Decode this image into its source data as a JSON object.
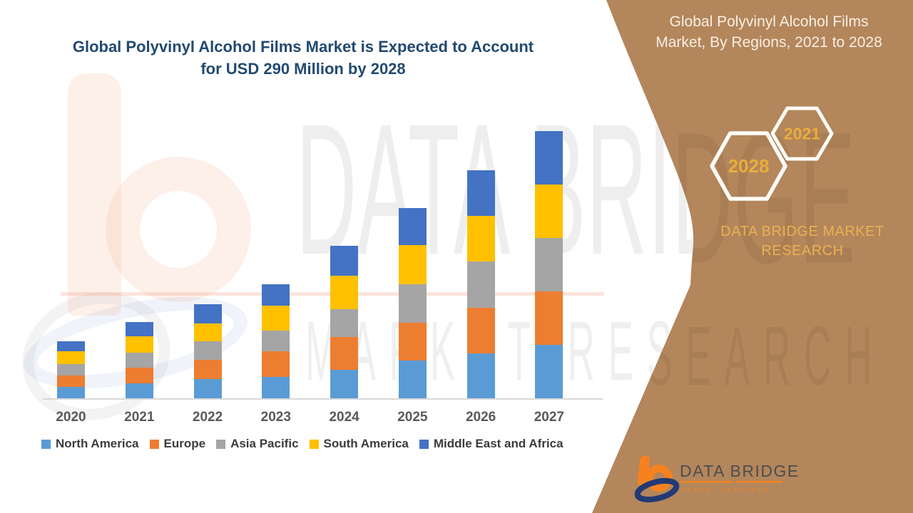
{
  "title": {
    "line1": "Global Polyvinyl Alcohol Films Market is Expected to Account",
    "line2": "for USD 290 Million by 2028",
    "color": "#224A70"
  },
  "panel": {
    "bg_color": "#B3865C",
    "heading_line1": "Global Polyvinyl Alcohol Films",
    "heading_line2": "Market, By Regions, 2021 to 2028",
    "heading_color": "#F8EFE2",
    "hexagons": [
      {
        "label": "2028"
      },
      {
        "label": "2021"
      }
    ],
    "hex_text_color": "#E8AE3C",
    "hex_stroke_color": "#FDFBF6",
    "brand_line1": "DATA BRIDGE MARKET",
    "brand_line2": "RESEARCH",
    "brand_color": "#EAB150"
  },
  "watermarks": {
    "big_text": "DATA BRIDGE",
    "sub_text": "MARKET RESEARCH"
  },
  "logo": {
    "name": "DATA BRIDGE",
    "subtitle": "MARKET RESEARCH",
    "orange": "#F5821F",
    "blue": "#223A75",
    "text_color": "#4D4D4D"
  },
  "chart_data": {
    "type": "bar",
    "stacked": true,
    "title": "Global Polyvinyl Alcohol Films Market is Expected to Account for USD 290 Million by 2028",
    "categories": [
      "2020",
      "2021",
      "2022",
      "2023",
      "2024",
      "2025",
      "2026",
      "2027"
    ],
    "series": [
      {
        "name": "North America",
        "color": "#5B9BD5",
        "values": [
          16,
          21,
          27,
          30,
          40,
          53,
          63,
          75
        ]
      },
      {
        "name": "Europe",
        "color": "#ED7D31",
        "values": [
          16,
          22,
          27,
          36,
          46,
          53,
          64,
          75
        ]
      },
      {
        "name": "Asia Pacific",
        "color": "#A5A5A5",
        "values": [
          16,
          21,
          26,
          29,
          39,
          54,
          65,
          75
        ]
      },
      {
        "name": "South America",
        "color": "#FFC000",
        "values": [
          18,
          23,
          25,
          35,
          47,
          55,
          64,
          75
        ]
      },
      {
        "name": "Middle East and Africa",
        "color": "#4472C4",
        "values": [
          14,
          20,
          27,
          30,
          42,
          52,
          64,
          75
        ]
      }
    ],
    "stack_order_bottom_to_top": [
      "North America",
      "Europe",
      "Asia Pacific",
      "South America",
      "Middle East and Africa"
    ],
    "totals": [
      80,
      107,
      132,
      160,
      214,
      267,
      320,
      375
    ],
    "xlabel": "",
    "ylabel": "",
    "y_axis_shown": false,
    "units": "relative height (no y-axis scale shown in figure)",
    "grid": false,
    "legend_position": "bottom",
    "x_tick_color": "#595959",
    "baseline_color": "#D9D9D9"
  }
}
